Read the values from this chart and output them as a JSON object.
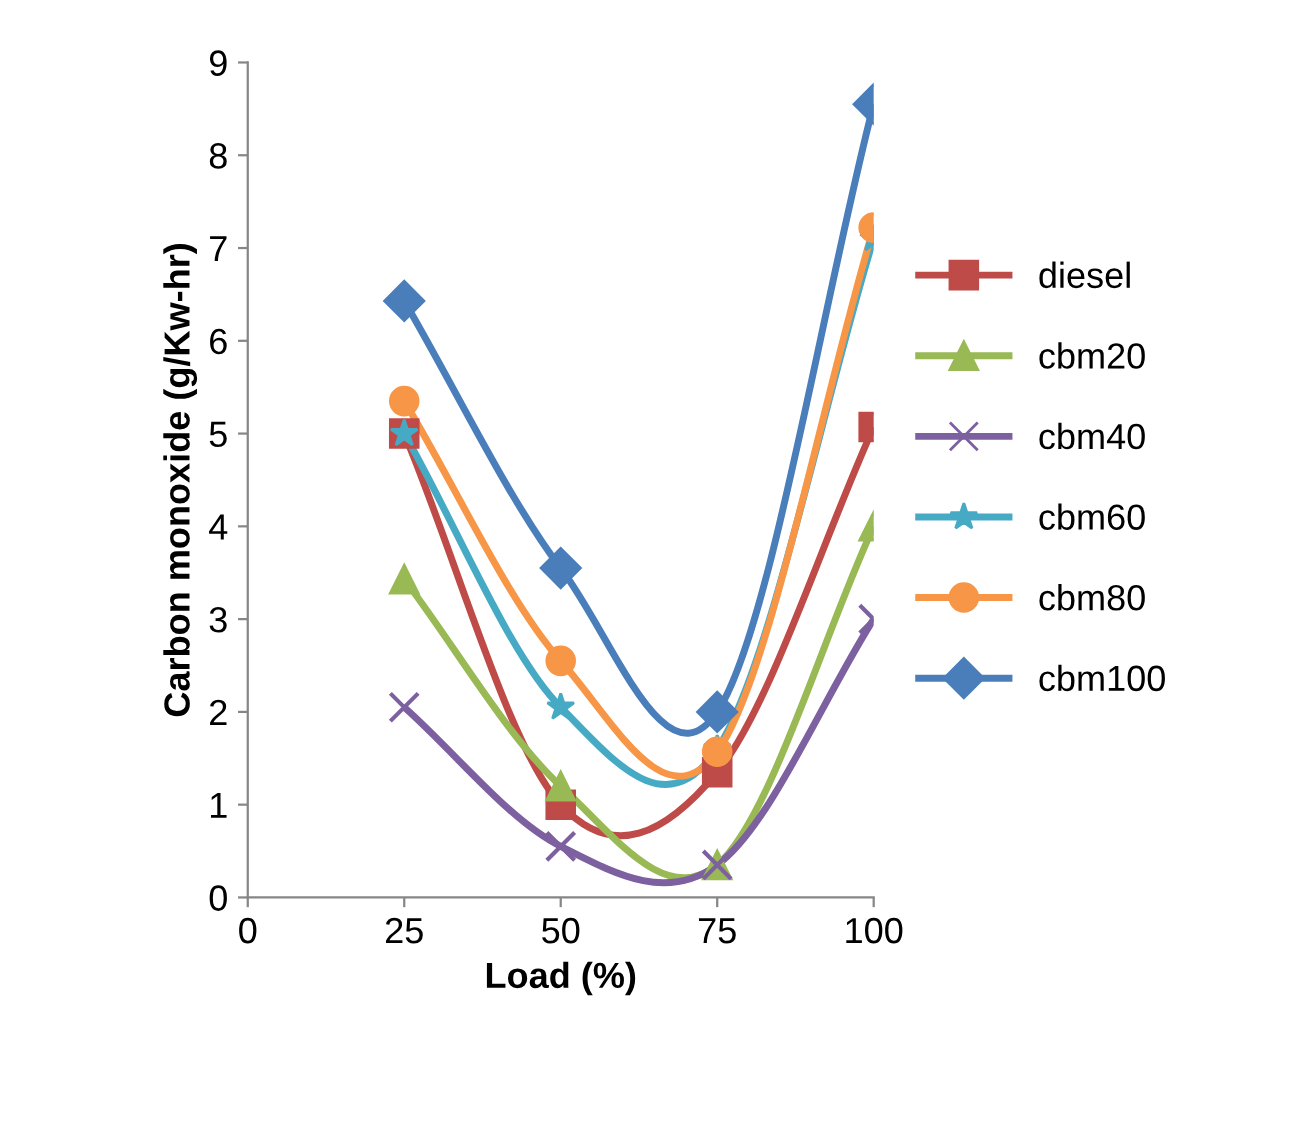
{
  "chart_data": {
    "type": "line",
    "xlabel": "Load (%)",
    "ylabel": "Carbon monoxide (g/Kw-hr)",
    "x": [
      25,
      50,
      75,
      100
    ],
    "xlim": [
      0,
      100
    ],
    "xticks": [
      0,
      25,
      50,
      75,
      100
    ],
    "ylim": [
      0,
      9
    ],
    "yticks": [
      0,
      1,
      2,
      3,
      4,
      5,
      6,
      7,
      8,
      9
    ],
    "grid": false,
    "legend": "right",
    "line_style": "solid",
    "series": [
      {
        "name": "diesel",
        "color": "#be4b48",
        "marker": "square",
        "values": [
          5.0,
          1.0,
          1.35,
          5.07
        ]
      },
      {
        "name": "cbm20",
        "color": "#98b954",
        "marker": "triangle",
        "values": [
          3.43,
          1.2,
          0.35,
          4.0
        ]
      },
      {
        "name": "cbm40",
        "color": "#7d60a0",
        "marker": "cross",
        "values": [
          2.05,
          0.55,
          0.35,
          3.0
        ]
      },
      {
        "name": "cbm60",
        "color": "#46aac5",
        "marker": "star",
        "values": [
          5.0,
          2.05,
          1.6,
          7.1
        ]
      },
      {
        "name": "cbm80",
        "color": "#f79646",
        "marker": "circle",
        "values": [
          5.35,
          2.55,
          1.57,
          7.22
        ]
      },
      {
        "name": "cbm100",
        "color": "#4a7ebb",
        "marker": "diamond",
        "values": [
          6.43,
          3.55,
          2.0,
          8.55
        ]
      }
    ]
  }
}
